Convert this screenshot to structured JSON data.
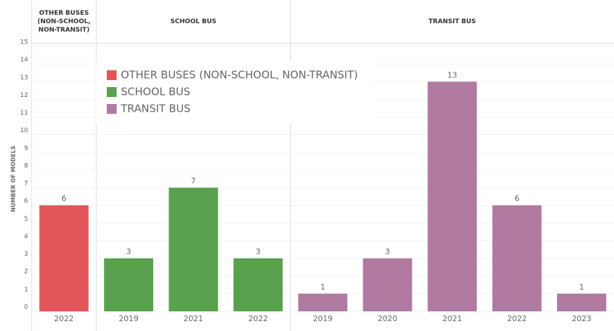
{
  "chart_data": {
    "type": "bar",
    "y_label": "NUMBER OF MODELS",
    "ylim": [
      0,
      15
    ],
    "yticks": [
      0,
      1,
      2,
      3,
      4,
      5,
      6,
      7,
      8,
      9,
      10,
      11,
      12,
      13,
      14,
      15
    ],
    "grid": true,
    "legend": "top-left",
    "series": [
      {
        "name": "OTHER BUSES (NON-SCHOOL, NON-TRANSIT)",
        "color": "#e15759",
        "categories": [
          "2022"
        ],
        "values": [
          6
        ]
      },
      {
        "name": "SCHOOL BUS",
        "color": "#59a14f",
        "categories": [
          "2019",
          "2021",
          "2022"
        ],
        "values": [
          3,
          7,
          3
        ]
      },
      {
        "name": "TRANSIT BUS",
        "color": "#b07aa1",
        "categories": [
          "2019",
          "2020",
          "2021",
          "2022",
          "2023"
        ],
        "values": [
          1,
          3,
          13,
          6,
          1
        ]
      }
    ]
  }
}
